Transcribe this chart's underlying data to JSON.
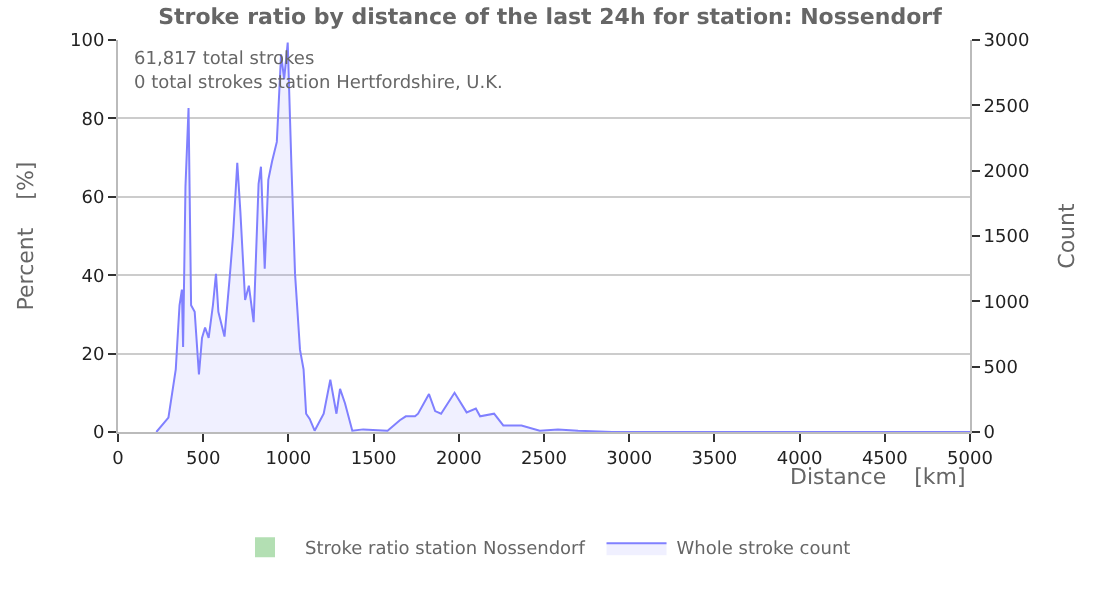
{
  "chart_data": {
    "type": "area",
    "title": "Stroke ratio by distance of the last 24h for station: Nossendorf",
    "xlabel": "Distance    [km]",
    "ylabel": "Percent    [%]",
    "y2label": "Count",
    "annotations": [
      "61,817 total strokes",
      "0 total strokes station Hertfordshire, U.K."
    ],
    "series": [
      {
        "name": "Stroke ratio station Nossendorf",
        "color": "#b3dfb3"
      },
      {
        "name": "Whole stroke count",
        "color": "#8080ff",
        "axis": "y2",
        "x": [
          225,
          296,
          339,
          361,
          375,
          382,
          396,
          414,
          429,
          450,
          475,
          493,
          511,
          532,
          557,
          575,
          589,
          625,
          654,
          675,
          700,
          718,
          746,
          768,
          796,
          825,
          839,
          861,
          882,
          904,
          932,
          957,
          975,
          996,
          1018,
          1039,
          1068,
          1089,
          1104,
          1125,
          1154,
          1207,
          1246,
          1282,
          1303,
          1332,
          1375,
          1439,
          1582,
          1654,
          1689,
          1743,
          1761,
          1825,
          1861,
          1896,
          1975,
          2046,
          2100,
          2125,
          2207,
          2261,
          2368,
          2475,
          2582,
          2700,
          2900,
          5000
        ],
        "values": [
          0,
          110,
          480,
          970,
          1090,
          650,
          1880,
          2480,
          970,
          920,
          440,
          720,
          800,
          720,
          970,
          1210,
          920,
          730,
          1160,
          1500,
          2060,
          1690,
          1010,
          1120,
          840,
          1900,
          2030,
          1250,
          1930,
          2070,
          2220,
          2890,
          2700,
          2980,
          2030,
          1210,
          630,
          480,
          140,
          100,
          10,
          140,
          400,
          140,
          330,
          220,
          10,
          20,
          10,
          90,
          120,
          120,
          140,
          290,
          160,
          140,
          300,
          150,
          180,
          120,
          140,
          50,
          50,
          10,
          20,
          10,
          0,
          0
        ]
      }
    ],
    "xlim": [
      0,
      5000
    ],
    "xticks": [
      0,
      500,
      1000,
      1500,
      2000,
      2500,
      3000,
      3500,
      4000,
      4500,
      5000
    ],
    "ylim": [
      0,
      100
    ],
    "yticks": [
      0,
      20,
      40,
      60,
      80,
      100
    ],
    "y2lim": [
      0,
      3000
    ],
    "y2ticks": [
      0,
      500,
      1000,
      1500,
      2000,
      2500,
      3000
    ],
    "grid": "y",
    "legend": "bottom"
  }
}
